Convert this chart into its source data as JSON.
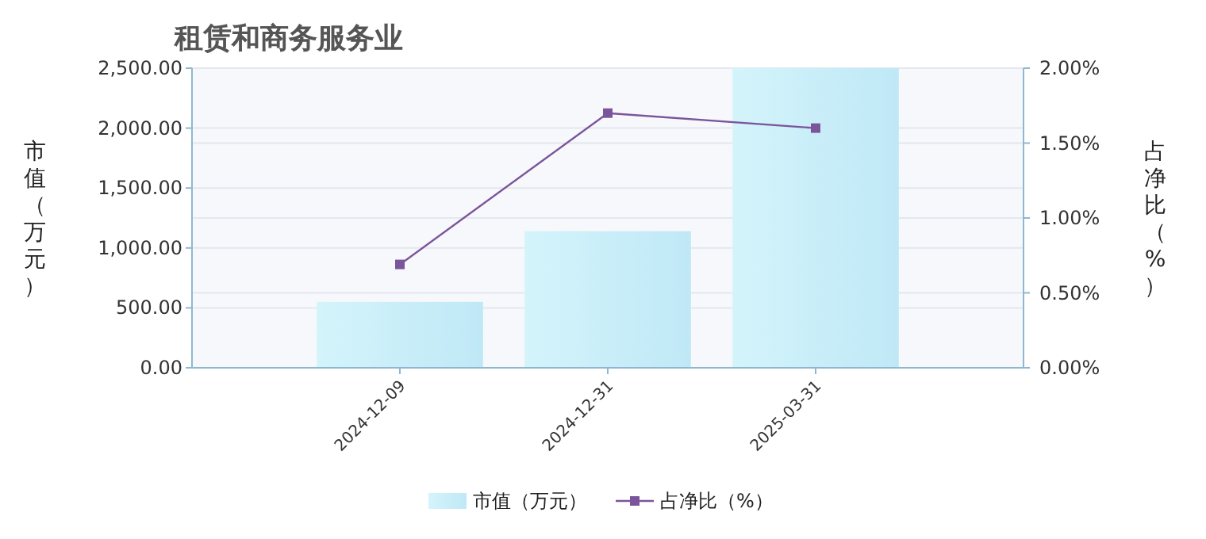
{
  "chart_data": {
    "type": "bar",
    "title": "租赁和商务服务业",
    "ylabel": "市值（万元）",
    "y2label": "占净比（%）",
    "categories": [
      "2024-12-09",
      "2024-12-31",
      "2025-03-31"
    ],
    "series": [
      {
        "name": "市值（万元）",
        "color": "#bfe8f6",
        "values": [
          550,
          1140,
          2500
        ]
      },
      {
        "name": "占净比（%）",
        "type": "line",
        "axis": "y2",
        "color": "#7b559c",
        "marker": "square",
        "values": [
          0.69,
          1.7,
          1.6
        ]
      }
    ],
    "ylim": [
      0,
      2500
    ],
    "yticks": [
      {
        "value": 0,
        "label": "0.00"
      },
      {
        "value": 500,
        "label": "500.00"
      },
      {
        "value": 1000,
        "label": "1,000.00"
      },
      {
        "value": 1500,
        "label": "1,500.00"
      },
      {
        "value": 2000,
        "label": "2,000.00"
      },
      {
        "value": 2500,
        "label": "2,500.00"
      }
    ],
    "y2lim": [
      0,
      2
    ],
    "y2ticks": [
      {
        "value": 0,
        "label": "0.00%"
      },
      {
        "value": 0.5,
        "label": "0.50%"
      },
      {
        "value": 1,
        "label": "1.00%"
      },
      {
        "value": 1.5,
        "label": "1.50%"
      },
      {
        "value": 2,
        "label": "2.00%"
      }
    ],
    "grid": true,
    "legend": "bottom"
  }
}
